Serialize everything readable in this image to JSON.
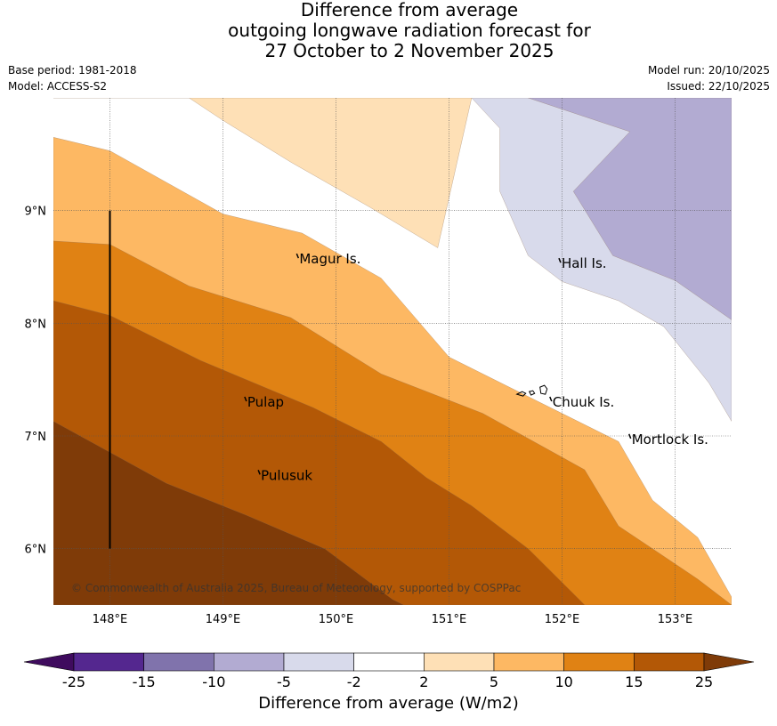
{
  "title": {
    "line1": "Difference from average",
    "line2": "outgoing longwave radiation forecast for",
    "line3": "27 October to 2 November 2025"
  },
  "meta_left": {
    "base_period": "Base period: 1981-2018",
    "model": "Model: ACCESS-S2"
  },
  "meta_right": {
    "model_run": "Model run: 20/10/2025",
    "issued": "Issued: 22/10/2025"
  },
  "map": {
    "lon_range": [
      147.5,
      153.5
    ],
    "lat_range": [
      5.5,
      10.0
    ],
    "lon_ticks": [
      {
        "v": 148,
        "label": "148°E"
      },
      {
        "v": 149,
        "label": "149°E"
      },
      {
        "v": 150,
        "label": "150°E"
      },
      {
        "v": 151,
        "label": "151°E"
      },
      {
        "v": 152,
        "label": "152°E"
      },
      {
        "v": 153,
        "label": "153°E"
      }
    ],
    "lat_ticks": [
      {
        "v": 6,
        "label": "6°N"
      },
      {
        "v": 7,
        "label": "7°N"
      },
      {
        "v": 8,
        "label": "8°N"
      },
      {
        "v": 9,
        "label": "9°N"
      }
    ],
    "places": [
      {
        "name": "Magur Is.",
        "lon": 149.66,
        "lat": 8.57
      },
      {
        "name": "Hall Is.",
        "lon": 151.98,
        "lat": 8.53
      },
      {
        "name": "Pulap",
        "lon": 149.2,
        "lat": 7.3
      },
      {
        "name": "Chuuk Is.",
        "lon": 151.9,
        "lat": 7.3
      },
      {
        "name": "Mortlock Is.",
        "lon": 152.6,
        "lat": 6.97
      },
      {
        "name": "Pulusuk",
        "lon": 149.32,
        "lat": 6.65
      }
    ],
    "copyright": "© Commonwealth of Australia 2025, Bureau of Meteorology, supported by COSPPac"
  },
  "legend": {
    "title": "Difference from average (W/m2)",
    "ticks": [
      "-25",
      "-15",
      "-10",
      "-5",
      "-2",
      "2",
      "5",
      "10",
      "15",
      "25"
    ],
    "colors": [
      "#3f0b5e",
      "#54278f",
      "#8073ac",
      "#b2abd2",
      "#d8daeb",
      "#ffffff",
      "#fee0b6",
      "#fdb863",
      "#e08214",
      "#b35806",
      "#7f3b08"
    ]
  },
  "chart_data": {
    "type": "heatmap",
    "title": "Difference from average outgoing longwave radiation forecast for 27 October to 2 November 2025",
    "units": "W/m2",
    "x_range": [
      147.5,
      153.5
    ],
    "y_range": [
      5.5,
      10.0
    ],
    "levels": [
      -25,
      -15,
      -10,
      -5,
      -2,
      2,
      5,
      10,
      15,
      25
    ],
    "contours": [
      {
        "level": -5,
        "fill": "#d8daeb",
        "points": [
          [
            151.2,
            10.0
          ],
          [
            153.5,
            10.0
          ],
          [
            153.5,
            7.13
          ],
          [
            153.3,
            7.47
          ],
          [
            152.9,
            7.97
          ],
          [
            152.5,
            8.2
          ],
          [
            152.0,
            8.37
          ],
          [
            151.7,
            8.6
          ],
          [
            151.45,
            9.17
          ],
          [
            151.45,
            9.73
          ]
        ]
      },
      {
        "level": -10,
        "fill": "#b2abd2",
        "points": [
          [
            151.7,
            10.0
          ],
          [
            153.5,
            10.0
          ],
          [
            153.5,
            8.03
          ],
          [
            153.0,
            8.38
          ],
          [
            152.45,
            8.6
          ],
          [
            152.1,
            9.17
          ],
          [
            152.6,
            9.7
          ]
        ]
      },
      {
        "level": 2,
        "fill": "#fee0b6",
        "points": [
          [
            147.5,
            10.0
          ],
          [
            151.2,
            10.0
          ],
          [
            150.9,
            8.67
          ],
          [
            150.3,
            9.03
          ],
          [
            149.6,
            9.43
          ],
          [
            149.0,
            9.8
          ],
          [
            148.7,
            10.0
          ]
        ]
      },
      {
        "level": 5,
        "fill": "#fdb863",
        "points": [
          [
            147.5,
            9.65
          ],
          [
            148.0,
            9.53
          ],
          [
            149.0,
            8.97
          ],
          [
            149.7,
            8.8
          ],
          [
            150.4,
            8.4
          ],
          [
            151.0,
            7.7
          ],
          [
            151.8,
            7.3
          ],
          [
            152.5,
            6.95
          ],
          [
            152.8,
            6.43
          ],
          [
            153.2,
            6.1
          ],
          [
            153.5,
            5.57
          ],
          [
            153.5,
            5.5
          ],
          [
            147.5,
            5.5
          ]
        ]
      },
      {
        "level": 10,
        "fill": "#e08214",
        "points": [
          [
            147.5,
            8.73
          ],
          [
            148.0,
            8.7
          ],
          [
            148.7,
            8.33
          ],
          [
            149.6,
            8.05
          ],
          [
            150.4,
            7.55
          ],
          [
            151.3,
            7.2
          ],
          [
            152.2,
            6.7
          ],
          [
            152.5,
            6.2
          ],
          [
            152.8,
            6.0
          ],
          [
            153.2,
            5.73
          ],
          [
            153.5,
            5.5
          ],
          [
            147.5,
            5.5
          ]
        ]
      },
      {
        "level": 15,
        "fill": "#b35806",
        "points": [
          [
            147.5,
            8.2
          ],
          [
            148.0,
            8.07
          ],
          [
            148.8,
            7.67
          ],
          [
            149.8,
            7.25
          ],
          [
            150.4,
            6.95
          ],
          [
            150.8,
            6.63
          ],
          [
            151.2,
            6.38
          ],
          [
            151.7,
            6.0
          ],
          [
            152.1,
            5.6
          ],
          [
            152.2,
            5.5
          ],
          [
            147.5,
            5.5
          ]
        ]
      },
      {
        "level": 25,
        "fill": "#7f3b08",
        "points": [
          [
            147.5,
            7.13
          ],
          [
            148.5,
            6.58
          ],
          [
            149.2,
            6.3
          ],
          [
            149.9,
            6.0
          ],
          [
            150.5,
            5.55
          ],
          [
            150.6,
            5.5
          ],
          [
            147.5,
            5.5
          ]
        ]
      }
    ]
  }
}
